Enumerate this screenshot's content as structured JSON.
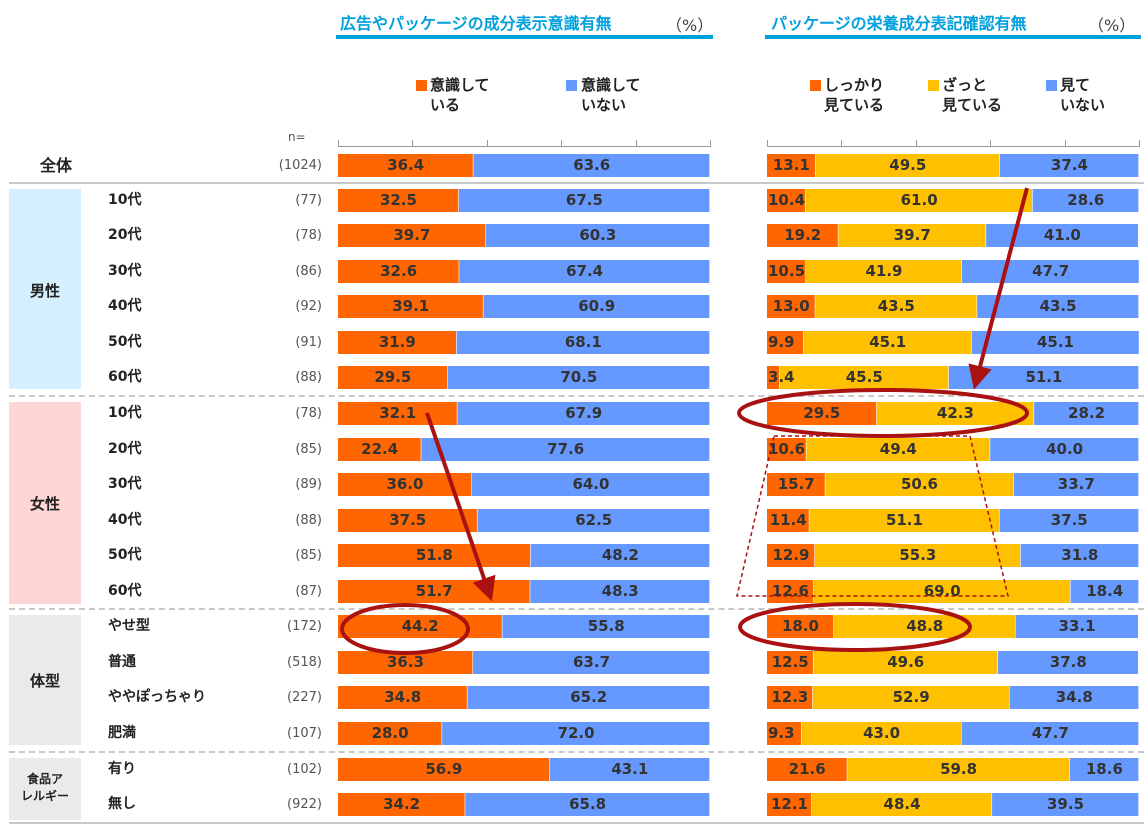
{
  "panel_titles": {
    "left": "広告やパッケージの成分表示意識有無",
    "right": "パッケージの栄養成分表記確認有無",
    "unit": "（%）"
  },
  "n_header": "n=",
  "legend_left": [
    {
      "line1": "意識して",
      "line2": "いる",
      "color": "#ff6600"
    },
    {
      "line1": "意識して",
      "line2": "いない",
      "color": "#6699ff"
    }
  ],
  "legend_right": [
    {
      "line1": "しっかり",
      "line2": "見ている",
      "color": "#ff6600"
    },
    {
      "line1": "ざっと",
      "line2": "見ている",
      "color": "#ffc000"
    },
    {
      "line1": "見て",
      "line2": "いない",
      "color": "#6699ff"
    }
  ],
  "groups": [
    {
      "label": "男性",
      "color": "#d6efff"
    },
    {
      "label": "女性",
      "color": "#ffd6d6"
    },
    {
      "label": "体型",
      "color": "#eaeaea"
    },
    {
      "label": "食品ア\nレルギー",
      "color": "#eaeaea"
    }
  ],
  "colors": {
    "orange": "#ff6600",
    "blue": "#6699ff",
    "yellow": "#ffc000",
    "highlight": "#aa1111"
  },
  "chart_data": [
    {
      "type": "bar",
      "orientation": "horizontal-stacked-100",
      "title": "広告やパッケージの成分表示意識有無",
      "unit": "%",
      "categories": [
        "全体",
        "男性 10代",
        "男性 20代",
        "男性 30代",
        "男性 40代",
        "男性 50代",
        "男性 60代",
        "女性 10代",
        "女性 20代",
        "女性 30代",
        "女性 40代",
        "女性 50代",
        "女性 60代",
        "やせ型",
        "普通",
        "ややぽっちゃり",
        "肥満",
        "食品アレルギー 有り",
        "食品アレルギー 無し"
      ],
      "series": [
        {
          "name": "意識している",
          "values": [
            36.4,
            32.5,
            39.7,
            32.6,
            39.1,
            31.9,
            29.5,
            32.1,
            22.4,
            36.0,
            37.5,
            51.8,
            51.7,
            44.2,
            36.3,
            34.8,
            28.0,
            56.9,
            34.2
          ]
        },
        {
          "name": "意識していない",
          "values": [
            63.6,
            67.5,
            60.3,
            67.4,
            60.9,
            68.1,
            70.5,
            67.9,
            77.6,
            64.0,
            62.5,
            48.2,
            48.3,
            55.8,
            63.7,
            65.2,
            72.0,
            43.1,
            65.8
          ]
        }
      ],
      "xlim": [
        0,
        100
      ]
    },
    {
      "type": "bar",
      "orientation": "horizontal-stacked-100",
      "title": "パッケージの栄養成分表記確認有無",
      "unit": "%",
      "categories": [
        "全体",
        "男性 10代",
        "男性 20代",
        "男性 30代",
        "男性 40代",
        "男性 50代",
        "男性 60代",
        "女性 10代",
        "女性 20代",
        "女性 30代",
        "女性 40代",
        "女性 50代",
        "女性 60代",
        "やせ型",
        "普通",
        "ややぽっちゃり",
        "肥満",
        "食品アレルギー 有り",
        "食品アレルギー 無し"
      ],
      "series": [
        {
          "name": "しっかり見ている",
          "values": [
            13.1,
            10.4,
            19.2,
            10.5,
            13.0,
            9.9,
            3.4,
            29.5,
            10.6,
            15.7,
            11.4,
            12.9,
            12.6,
            18.0,
            12.5,
            12.3,
            9.3,
            21.6,
            12.1
          ]
        },
        {
          "name": "ざっと見ている",
          "values": [
            49.5,
            61.0,
            39.7,
            41.9,
            43.5,
            45.1,
            45.5,
            42.3,
            49.4,
            50.6,
            51.1,
            55.3,
            69.0,
            48.8,
            49.6,
            52.9,
            43.0,
            59.8,
            48.4
          ]
        },
        {
          "name": "見ていない",
          "values": [
            37.4,
            28.6,
            41.0,
            47.7,
            43.5,
            45.1,
            51.1,
            28.2,
            40.0,
            33.7,
            37.5,
            31.8,
            18.4,
            33.1,
            37.8,
            34.8,
            47.7,
            18.6,
            39.5
          ]
        }
      ],
      "xlim": [
        0,
        100
      ]
    }
  ],
  "rows": [
    {
      "label": "全体",
      "n": "(1024)"
    },
    {
      "label": "10代",
      "n": "(77)"
    },
    {
      "label": "20代",
      "n": "(78)"
    },
    {
      "label": "30代",
      "n": "(86)"
    },
    {
      "label": "40代",
      "n": "(92)"
    },
    {
      "label": "50代",
      "n": "(91)"
    },
    {
      "label": "60代",
      "n": "(88)"
    },
    {
      "label": "10代",
      "n": "(78)"
    },
    {
      "label": "20代",
      "n": "(85)"
    },
    {
      "label": "30代",
      "n": "(89)"
    },
    {
      "label": "40代",
      "n": "(88)"
    },
    {
      "label": "50代",
      "n": "(85)"
    },
    {
      "label": "60代",
      "n": "(87)"
    },
    {
      "label": "やせ型",
      "n": "(172)"
    },
    {
      "label": "普通",
      "n": "(518)"
    },
    {
      "label": "ややぽっちゃり",
      "n": "(227)"
    },
    {
      "label": "肥満",
      "n": "(107)"
    },
    {
      "label": "有り",
      "n": "(102)"
    },
    {
      "label": "無し",
      "n": "(922)"
    }
  ]
}
